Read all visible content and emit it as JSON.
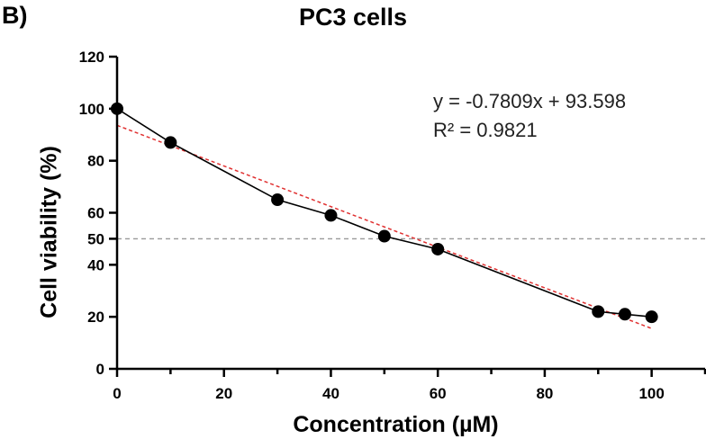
{
  "panel_label": "B)",
  "chart_data": {
    "type": "line",
    "title": "PC3 cells",
    "xlabel": "Concentration (µM)",
    "ylabel": "Cell viability (%)",
    "xlim": [
      0,
      110
    ],
    "ylim": [
      0,
      120
    ],
    "x_ticks": [
      0,
      20,
      40,
      60,
      80,
      100
    ],
    "y_ticks": [
      0,
      20,
      40,
      50,
      60,
      80,
      100,
      120
    ],
    "grid": false,
    "series": [
      {
        "x": [
          0,
          10,
          30,
          40,
          50,
          60,
          90,
          95,
          100
        ],
        "values": [
          100,
          87,
          65,
          59,
          51,
          46,
          22,
          21,
          20
        ],
        "color": "#000000"
      }
    ],
    "trendline": {
      "slope": -0.7809,
      "intercept": 93.598,
      "x_range": [
        0,
        100
      ],
      "color": "#e03030",
      "style": "dashed"
    },
    "reference_line": {
      "y": 50,
      "color": "#999999",
      "style": "dashed"
    },
    "annotations": {
      "equation": "y = -0.7809x + 93.598",
      "r_squared": "R² = 0.9821"
    }
  }
}
